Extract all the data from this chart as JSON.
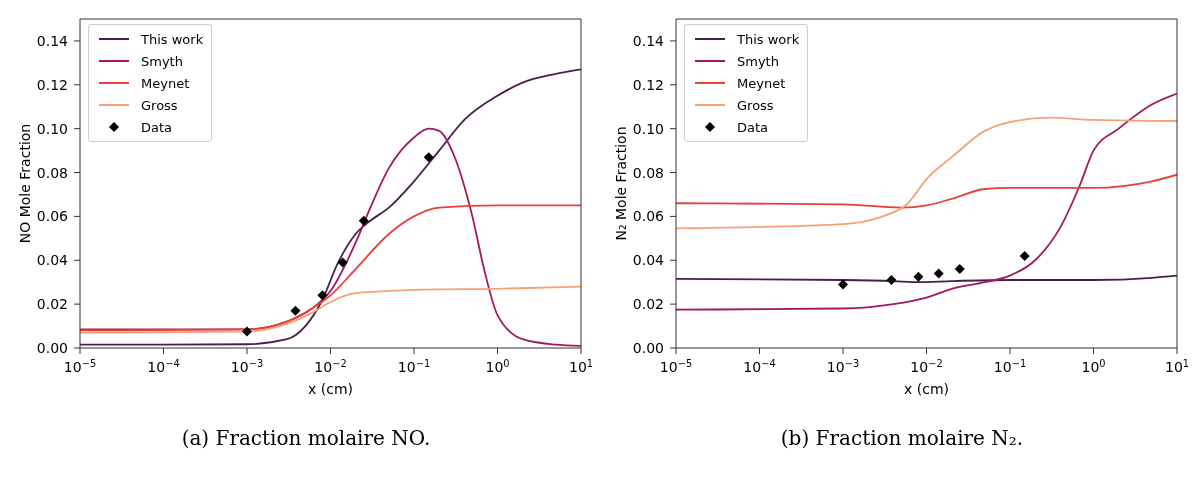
{
  "chart_data": [
    {
      "type": "line",
      "title": "(a) Fraction molaire NO.",
      "xlabel": "x (cm)",
      "ylabel": "NO Mole Fraction",
      "log": "x",
      "grid": false,
      "legend": "top left",
      "xlim": [
        1e-05,
        10
      ],
      "xticks": [
        {
          "value": 1e-05,
          "label": "10$^{−5}$"
        },
        {
          "value": 0.0001,
          "label": "10$^{−4}$"
        },
        {
          "value": 0.001,
          "label": "10$^{−3}$"
        },
        {
          "value": 0.01,
          "label": "10$^{−2}$"
        },
        {
          "value": 0.1,
          "label": "10$^{−1}$"
        },
        {
          "value": 1,
          "label": "10$^{0}$"
        },
        {
          "value": 10,
          "label": "10$^{1}$"
        }
      ],
      "ylim": [
        0,
        0.15
      ],
      "yticks": [
        {
          "value": 0,
          "label": "0.00"
        },
        {
          "value": 0.02,
          "label": "0.02"
        },
        {
          "value": 0.04,
          "label": "0.04"
        },
        {
          "value": 0.06,
          "label": "0.06"
        },
        {
          "value": 0.08,
          "label": "0.08"
        },
        {
          "value": 0.1,
          "label": "0.10"
        },
        {
          "value": 0.12,
          "label": "0.12"
        },
        {
          "value": 0.14,
          "label": "0.14"
        }
      ],
      "series": [
        {
          "name": "This work",
          "type": "line",
          "color": "#4a1d4f",
          "x": [
            1e-05,
            0.0001,
            0.001,
            0.003,
            0.005,
            0.008,
            0.012,
            0.02,
            0.03,
            0.05,
            0.1,
            0.2,
            0.4,
            1,
            2,
            5,
            10
          ],
          "values": [
            0.0015,
            0.0015,
            0.0017,
            0.004,
            0.01,
            0.022,
            0.038,
            0.052,
            0.058,
            0.064,
            0.076,
            0.09,
            0.104,
            0.115,
            0.121,
            0.125,
            0.127
          ]
        },
        {
          "name": "Smyth",
          "type": "line",
          "color": "#a2185f",
          "x": [
            1e-05,
            0.001,
            0.003,
            0.006,
            0.01,
            0.02,
            0.03,
            0.05,
            0.1,
            0.15,
            0.2,
            0.3,
            0.5,
            0.7,
            1,
            2,
            5,
            10
          ],
          "values": [
            0.0085,
            0.0085,
            0.012,
            0.018,
            0.026,
            0.048,
            0.064,
            0.082,
            0.096,
            0.1,
            0.099,
            0.088,
            0.06,
            0.035,
            0.015,
            0.004,
            0.0015,
            0.001
          ]
        },
        {
          "name": "Meynet",
          "type": "line",
          "color": "#e8413a",
          "x": [
            1e-05,
            0.001,
            0.003,
            0.006,
            0.01,
            0.02,
            0.05,
            0.1,
            0.2,
            1,
            10
          ],
          "values": [
            0.008,
            0.0085,
            0.012,
            0.018,
            0.024,
            0.036,
            0.052,
            0.06,
            0.064,
            0.065,
            0.065
          ]
        },
        {
          "name": "Gross",
          "type": "line",
          "color": "#f6a076",
          "x": [
            1e-05,
            0.001,
            0.003,
            0.006,
            0.01,
            0.02,
            0.05,
            0.1,
            1,
            10
          ],
          "values": [
            0.007,
            0.0075,
            0.011,
            0.016,
            0.021,
            0.025,
            0.026,
            0.0265,
            0.027,
            0.028
          ]
        },
        {
          "name": "Data",
          "type": "scatter",
          "marker": "diamond",
          "color": "#000000",
          "x": [
            0.001,
            0.0038,
            0.008,
            0.014,
            0.025,
            0.15
          ],
          "values": [
            0.0075,
            0.017,
            0.024,
            0.039,
            0.058,
            0.087
          ]
        }
      ]
    },
    {
      "type": "line",
      "title": "(b) Fraction molaire N₂.",
      "xlabel": "x (cm)",
      "ylabel": "N₂ Mole Fraction",
      "log": "x",
      "grid": false,
      "legend": "top left",
      "xlim": [
        1e-05,
        10
      ],
      "xticks": [
        {
          "value": 1e-05,
          "label": "10$^{−5}$"
        },
        {
          "value": 0.0001,
          "label": "10$^{−4}$"
        },
        {
          "value": 0.001,
          "label": "10$^{−3}$"
        },
        {
          "value": 0.01,
          "label": "10$^{−2}$"
        },
        {
          "value": 0.1,
          "label": "10$^{−1}$"
        },
        {
          "value": 1,
          "label": "10$^{0}$"
        },
        {
          "value": 10,
          "label": "10$^{1}$"
        }
      ],
      "ylim": [
        0,
        0.15
      ],
      "yticks": [
        {
          "value": 0,
          "label": "0.00"
        },
        {
          "value": 0.02,
          "label": "0.02"
        },
        {
          "value": 0.04,
          "label": "0.04"
        },
        {
          "value": 0.06,
          "label": "0.06"
        },
        {
          "value": 0.08,
          "label": "0.08"
        },
        {
          "value": 0.1,
          "label": "0.10"
        },
        {
          "value": 0.12,
          "label": "0.12"
        },
        {
          "value": 0.14,
          "label": "0.14"
        }
      ],
      "series": [
        {
          "name": "This work",
          "type": "line",
          "color": "#4a1d4f",
          "x": [
            1e-05,
            0.001,
            0.004,
            0.008,
            0.02,
            0.1,
            1,
            5,
            10
          ],
          "values": [
            0.0315,
            0.031,
            0.0305,
            0.03,
            0.0305,
            0.031,
            0.031,
            0.032,
            0.033
          ]
        },
        {
          "name": "Smyth",
          "type": "line",
          "color": "#a2185f",
          "x": [
            1e-05,
            0.001,
            0.004,
            0.01,
            0.02,
            0.05,
            0.1,
            0.2,
            0.4,
            0.7,
            1,
            2,
            5,
            10
          ],
          "values": [
            0.0175,
            0.018,
            0.02,
            0.023,
            0.027,
            0.03,
            0.033,
            0.04,
            0.055,
            0.075,
            0.09,
            0.1,
            0.111,
            0.116
          ]
        },
        {
          "name": "Meynet",
          "type": "line",
          "color": "#e8413a",
          "x": [
            1e-05,
            0.001,
            0.005,
            0.01,
            0.02,
            0.05,
            0.1,
            1,
            5,
            10
          ],
          "values": [
            0.066,
            0.0655,
            0.064,
            0.065,
            0.068,
            0.0725,
            0.073,
            0.073,
            0.076,
            0.079
          ]
        },
        {
          "name": "Gross",
          "type": "line",
          "color": "#f6a076",
          "x": [
            1e-05,
            0.001,
            0.003,
            0.006,
            0.01,
            0.02,
            0.05,
            0.1,
            0.3,
            1,
            10
          ],
          "values": [
            0.0545,
            0.0565,
            0.06,
            0.066,
            0.077,
            0.087,
            0.099,
            0.103,
            0.105,
            0.104,
            0.1035
          ]
        },
        {
          "name": "Data",
          "type": "scatter",
          "marker": "diamond",
          "color": "#000000",
          "x": [
            0.001,
            0.0038,
            0.008,
            0.014,
            0.025,
            0.15
          ],
          "values": [
            0.029,
            0.031,
            0.0325,
            0.034,
            0.036,
            0.042
          ]
        }
      ]
    }
  ]
}
